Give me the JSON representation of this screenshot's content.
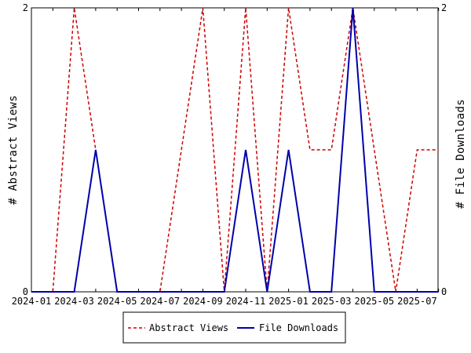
{
  "chart_data": {
    "type": "line",
    "x": [
      "2024-01",
      "2024-02",
      "2024-03",
      "2024-04",
      "2024-05",
      "2024-06",
      "2024-07",
      "2024-08",
      "2024-09",
      "2024-10",
      "2024-11",
      "2024-12",
      "2025-01",
      "2025-02",
      "2025-03",
      "2025-04",
      "2025-05",
      "2025-06",
      "2025-07",
      "2025-08"
    ],
    "x_tick_labels": [
      "2024-01",
      "2024-03",
      "2024-05",
      "2024-07",
      "2024-09",
      "2024-11",
      "2025-01",
      "2025-03",
      "2025-05",
      "2025-07"
    ],
    "series": [
      {
        "name": "Abstract Views",
        "axis": "left",
        "color": "#cc0000",
        "dash": "dashed",
        "values": [
          0,
          0,
          2,
          1,
          0,
          0,
          0,
          1,
          2,
          0,
          2,
          0,
          2,
          1,
          1,
          2,
          1,
          0,
          1,
          1
        ]
      },
      {
        "name": "File Downloads",
        "axis": "right",
        "color": "#0000aa",
        "dash": "solid",
        "values": [
          0,
          0,
          0,
          1,
          0,
          0,
          0,
          0,
          0,
          0,
          1,
          0,
          1,
          0,
          0,
          2,
          0,
          0,
          0,
          0
        ]
      }
    ],
    "ylabel_left": "# Abstract Views",
    "ylabel_right": "# File Downloads",
    "ylim": [
      0,
      2
    ],
    "y_tick_labels_left": [
      "0",
      "2"
    ],
    "y_tick_labels_right": [
      "0",
      "2"
    ],
    "legend_position": "bottom-center",
    "grid": false
  }
}
